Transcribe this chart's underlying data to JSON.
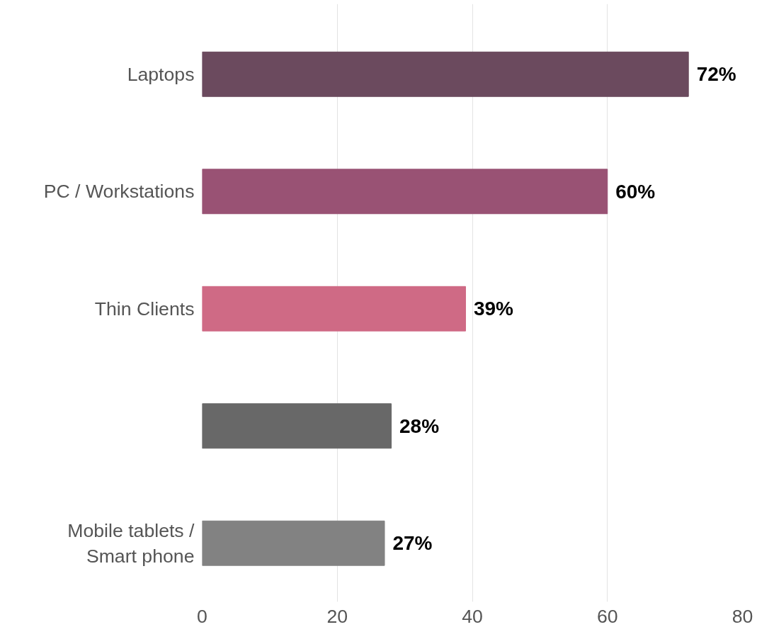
{
  "chart_data": {
    "type": "bar",
    "orientation": "horizontal",
    "categories": [
      "Laptops",
      "PC / Workstations",
      "Thin Clients",
      null,
      "Mobile tablets /\nSmart phone"
    ],
    "values": [
      72,
      60,
      39,
      28,
      27
    ],
    "colors": [
      "#6b4a5e",
      "#995274",
      "#cf6a85",
      "#686868",
      "#828282"
    ],
    "value_labels": [
      "72%",
      "60%",
      "39%",
      "28%",
      "27%"
    ],
    "xlim": [
      0,
      80
    ],
    "xticks": [
      0,
      20,
      40,
      60,
      80
    ],
    "grid": "x"
  }
}
